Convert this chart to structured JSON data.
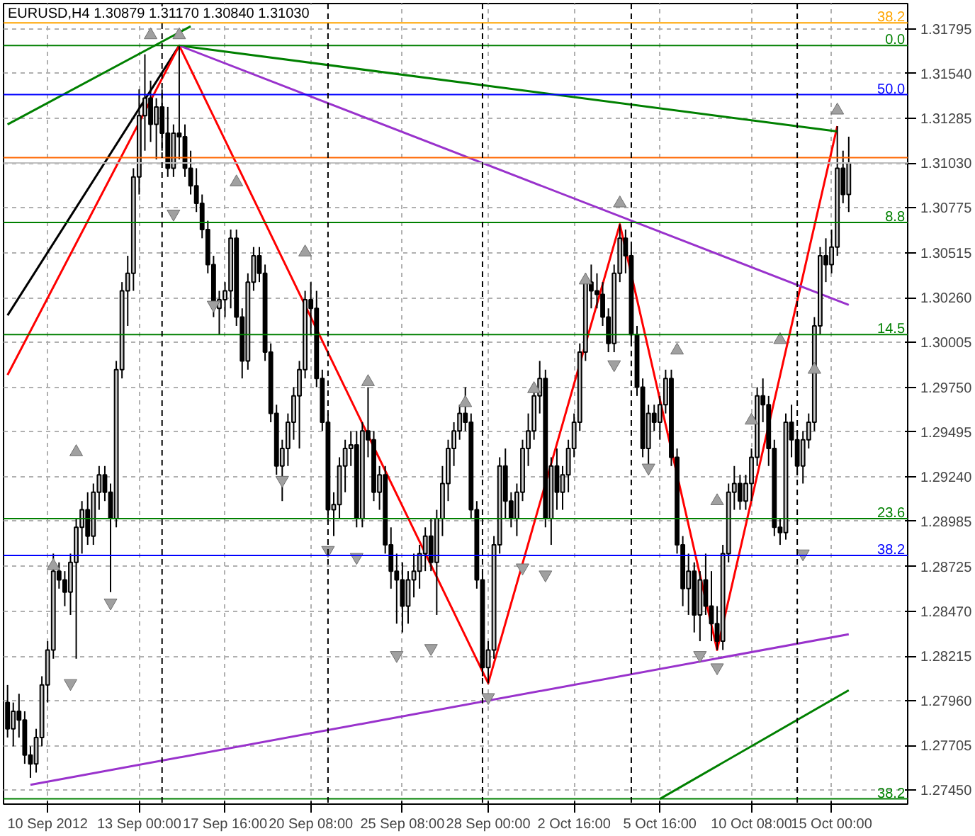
{
  "chart_data": {
    "type": "candlestick",
    "title": "EURUSD,H4  1.30879 1.31170 1.30840 1.31030",
    "categories": [
      null,
      null,
      null,
      null,
      null,
      null,
      null,
      "10 Sep 2012",
      null,
      null,
      null,
      null,
      null,
      null,
      null,
      null,
      null,
      null,
      null,
      null,
      null,
      null,
      null,
      "13 Sep 00:00",
      null,
      null,
      null,
      null,
      null,
      null,
      null,
      null,
      null,
      null,
      null,
      null,
      null,
      null,
      "17 Sep 16:00",
      null,
      null,
      null,
      null,
      null,
      null,
      null,
      null,
      null,
      null,
      null,
      null,
      null,
      null,
      "20 Sep 08:00",
      null,
      null,
      null,
      null,
      null,
      null,
      null,
      null,
      null,
      null,
      null,
      null,
      null,
      null,
      null,
      "25 Sep 08:00",
      null,
      null,
      null,
      null,
      null,
      null,
      null,
      null,
      null,
      null,
      null,
      null,
      null,
      null,
      "28 Sep 00:00",
      null,
      null,
      null,
      null,
      null,
      null,
      null,
      null,
      null,
      null,
      null,
      null,
      null,
      null,
      "2 Oct 16:00",
      null,
      null,
      null,
      null,
      null,
      null,
      null,
      null,
      null,
      null,
      null,
      null,
      null,
      null,
      "5 Oct 16:00",
      null,
      null,
      null,
      null,
      null,
      null,
      null,
      null,
      null,
      null,
      null,
      null,
      null,
      null,
      null,
      "10 Oct 08:00",
      null,
      null,
      null,
      null,
      null,
      null,
      null,
      null,
      null,
      null,
      null,
      null,
      null,
      "15 Oct 00:00",
      null,
      null,
      null
    ],
    "ohlc": [
      [
        1.2795,
        1.2805,
        1.2775,
        1.278
      ],
      [
        1.278,
        1.2795,
        1.277,
        1.279
      ],
      [
        1.279,
        1.28,
        1.2775,
        1.2785
      ],
      [
        1.2785,
        1.279,
        1.276,
        1.2765
      ],
      [
        1.2765,
        1.277,
        1.2752,
        1.276
      ],
      [
        1.276,
        1.278,
        1.2755,
        1.2775
      ],
      [
        1.2775,
        1.281,
        1.277,
        1.2805
      ],
      [
        1.2805,
        1.283,
        1.2795,
        1.2825
      ],
      [
        1.2825,
        1.288,
        1.282,
        1.287
      ],
      [
        1.287,
        1.2875,
        1.286,
        1.2865
      ],
      [
        1.2865,
        1.287,
        1.285,
        1.2858
      ],
      [
        1.2858,
        1.288,
        1.2845,
        1.2875
      ],
      [
        1.2875,
        1.29,
        1.282,
        1.2895
      ],
      [
        1.2895,
        1.291,
        1.288,
        1.2905
      ],
      [
        1.2905,
        1.2915,
        1.2885,
        1.289
      ],
      [
        1.289,
        1.292,
        1.2885,
        1.2915
      ],
      [
        1.2915,
        1.293,
        1.2905,
        1.2925
      ],
      [
        1.2925,
        1.293,
        1.291,
        1.2915
      ],
      [
        1.2915,
        1.292,
        1.2858,
        1.29
      ],
      [
        1.29,
        1.299,
        1.2895,
        1.2985
      ],
      [
        1.2985,
        1.3035,
        1.298,
        1.303
      ],
      [
        1.303,
        1.305,
        1.301,
        1.304
      ],
      [
        1.304,
        1.31,
        1.303,
        1.3095
      ],
      [
        1.3095,
        1.3145,
        1.3085,
        1.313
      ],
      [
        1.313,
        1.3165,
        1.311,
        1.314
      ],
      [
        1.314,
        1.315,
        1.3115,
        1.3125
      ],
      [
        1.3125,
        1.314,
        1.3105,
        1.3135
      ],
      [
        1.3135,
        1.3145,
        1.311,
        1.312
      ],
      [
        1.312,
        1.3135,
        1.3095,
        1.31
      ],
      [
        1.31,
        1.3125,
        1.3095,
        1.312
      ],
      [
        1.312,
        1.317,
        1.3105,
        1.3118
      ],
      [
        1.3118,
        1.3125,
        1.3095,
        1.31
      ],
      [
        1.31,
        1.311,
        1.3085,
        1.309
      ],
      [
        1.309,
        1.31,
        1.3075,
        1.308
      ],
      [
        1.308,
        1.3085,
        1.306,
        1.3065
      ],
      [
        1.3065,
        1.307,
        1.304,
        1.3045
      ],
      [
        1.3045,
        1.305,
        1.3015,
        1.302
      ],
      [
        1.302,
        1.303,
        1.3005,
        1.3025
      ],
      [
        1.3025,
        1.3035,
        1.3015,
        1.303
      ],
      [
        1.303,
        1.3065,
        1.302,
        1.306
      ],
      [
        1.306,
        1.3065,
        1.301,
        1.3015
      ],
      [
        1.3015,
        1.302,
        1.298,
        1.299
      ],
      [
        1.299,
        1.304,
        1.2985,
        1.3035
      ],
      [
        1.3035,
        1.3055,
        1.303,
        1.305
      ],
      [
        1.305,
        1.3055,
        1.3035,
        1.304
      ],
      [
        1.304,
        1.3045,
        1.299,
        1.2995
      ],
      [
        1.2995,
        1.3,
        1.2955,
        1.296
      ],
      [
        1.296,
        1.2965,
        1.2925,
        1.293
      ],
      [
        1.293,
        1.2945,
        1.291,
        1.294
      ],
      [
        1.294,
        1.296,
        1.293,
        1.2955
      ],
      [
        1.2955,
        1.2975,
        1.2945,
        1.297
      ],
      [
        1.297,
        1.299,
        1.294,
        1.2985
      ],
      [
        1.2985,
        1.303,
        1.298,
        1.3025
      ],
      [
        1.3025,
        1.3035,
        1.3005,
        1.302
      ],
      [
        1.302,
        1.303,
        1.2975,
        1.298
      ],
      [
        1.298,
        1.2985,
        1.295,
        1.2955
      ],
      [
        1.2955,
        1.296,
        1.29,
        1.2905
      ],
      [
        1.2905,
        1.2915,
        1.289,
        1.2908
      ],
      [
        1.2908,
        1.2935,
        1.29,
        1.293
      ],
      [
        1.293,
        1.2945,
        1.2915,
        1.294
      ],
      [
        1.294,
        1.295,
        1.293,
        1.2942
      ],
      [
        1.2942,
        1.295,
        1.2895,
        1.29
      ],
      [
        1.29,
        1.2955,
        1.2895,
        1.295
      ],
      [
        1.295,
        1.2975,
        1.2935,
        1.2945
      ],
      [
        1.2945,
        1.295,
        1.291,
        1.2915
      ],
      [
        1.2915,
        1.293,
        1.2905,
        1.2925
      ],
      [
        1.2925,
        1.293,
        1.288,
        1.2885
      ],
      [
        1.2885,
        1.2895,
        1.286,
        1.287
      ],
      [
        1.287,
        1.288,
        1.284,
        1.2865
      ],
      [
        1.2865,
        1.2875,
        1.2835,
        1.285
      ],
      [
        1.285,
        1.287,
        1.284,
        1.2865
      ],
      [
        1.2865,
        1.288,
        1.2855,
        1.287
      ],
      [
        1.287,
        1.2885,
        1.286,
        1.288
      ],
      [
        1.288,
        1.2895,
        1.287,
        1.289
      ],
      [
        1.289,
        1.29,
        1.287,
        1.2875
      ],
      [
        1.2875,
        1.2905,
        1.2845,
        1.29
      ],
      [
        1.29,
        1.293,
        1.289,
        1.292
      ],
      [
        1.292,
        1.2945,
        1.291,
        1.294
      ],
      [
        1.294,
        1.2955,
        1.293,
        1.295
      ],
      [
        1.295,
        1.2965,
        1.2945,
        1.296
      ],
      [
        1.296,
        1.2975,
        1.295,
        1.2955
      ],
      [
        1.2955,
        1.296,
        1.29,
        1.2905
      ],
      [
        1.2905,
        1.291,
        1.286,
        1.2865
      ],
      [
        1.2865,
        1.287,
        1.281,
        1.2815
      ],
      [
        1.2815,
        1.283,
        1.2806,
        1.2825
      ],
      [
        1.2825,
        1.289,
        1.282,
        1.2885
      ],
      [
        1.2885,
        1.2935,
        1.288,
        1.293
      ],
      [
        1.293,
        1.294,
        1.29,
        1.291
      ],
      [
        1.291,
        1.2915,
        1.2895,
        1.29
      ],
      [
        1.29,
        1.292,
        1.289,
        1.2915
      ],
      [
        1.2915,
        1.2945,
        1.291,
        1.294
      ],
      [
        1.294,
        1.296,
        1.293,
        1.295
      ],
      [
        1.295,
        1.2975,
        1.2945,
        1.297
      ],
      [
        1.297,
        1.299,
        1.296,
        1.298
      ],
      [
        1.298,
        1.2985,
        1.2895,
        1.29
      ],
      [
        1.29,
        1.2935,
        1.2885,
        1.293
      ],
      [
        1.293,
        1.294,
        1.2905,
        1.2915
      ],
      [
        1.2915,
        1.293,
        1.2905,
        1.2925
      ],
      [
        1.2925,
        1.2945,
        1.2915,
        1.294
      ],
      [
        1.294,
        1.296,
        1.2935,
        1.2955
      ],
      [
        1.2955,
        1.3,
        1.295,
        1.2995
      ],
      [
        1.2995,
        1.304,
        1.299,
        1.3035
      ],
      [
        1.3035,
        1.3045,
        1.302,
        1.303
      ],
      [
        1.303,
        1.304,
        1.302,
        1.3028
      ],
      [
        1.3028,
        1.3035,
        1.301,
        1.3015
      ],
      [
        1.3015,
        1.302,
        1.2995,
        1.3
      ],
      [
        1.3,
        1.3045,
        1.2995,
        1.304
      ],
      [
        1.304,
        1.3068,
        1.3035,
        1.306
      ],
      [
        1.306,
        1.3065,
        1.304,
        1.305
      ],
      [
        1.305,
        1.3055,
        1.3,
        1.3005
      ],
      [
        1.3005,
        1.301,
        1.297,
        1.2975
      ],
      [
        1.2975,
        1.298,
        1.2935,
        1.294
      ],
      [
        1.294,
        1.2965,
        1.2925,
        1.296
      ],
      [
        1.296,
        1.2965,
        1.295,
        1.2955
      ],
      [
        1.2955,
        1.297,
        1.2945,
        1.2965
      ],
      [
        1.2965,
        1.2985,
        1.296,
        1.298
      ],
      [
        1.298,
        1.2985,
        1.293,
        1.2935
      ],
      [
        1.2935,
        1.294,
        1.288,
        1.2885
      ],
      [
        1.2885,
        1.289,
        1.285,
        1.286
      ],
      [
        1.286,
        1.288,
        1.2845,
        1.287
      ],
      [
        1.287,
        1.2875,
        1.2835,
        1.2845
      ],
      [
        1.2845,
        1.287,
        1.283,
        1.2865
      ],
      [
        1.2865,
        1.288,
        1.2845,
        1.285
      ],
      [
        1.285,
        1.287,
        1.283,
        1.284
      ],
      [
        1.284,
        1.285,
        1.2825,
        1.283
      ],
      [
        1.283,
        1.2885,
        1.2825,
        1.288
      ],
      [
        1.288,
        1.292,
        1.2875,
        1.2915
      ],
      [
        1.2915,
        1.293,
        1.2905,
        1.292
      ],
      [
        1.292,
        1.2925,
        1.2905,
        1.291
      ],
      [
        1.291,
        1.2925,
        1.2905,
        1.292
      ],
      [
        1.292,
        1.294,
        1.291,
        1.2935
      ],
      [
        1.2935,
        1.2975,
        1.293,
        1.297
      ],
      [
        1.297,
        1.298,
        1.2955,
        1.2965
      ],
      [
        1.2965,
        1.297,
        1.293,
        1.294
      ],
      [
        1.294,
        1.2945,
        1.289,
        1.2895
      ],
      [
        1.2895,
        1.29,
        1.2885,
        1.2892
      ],
      [
        1.2892,
        1.296,
        1.2888,
        1.2955
      ],
      [
        1.2955,
        1.2965,
        1.2935,
        1.2945
      ],
      [
        1.2945,
        1.295,
        1.2925,
        1.293
      ],
      [
        1.293,
        1.295,
        1.292,
        1.2945
      ],
      [
        1.2945,
        1.296,
        1.294,
        1.2955
      ],
      [
        1.2955,
        1.3015,
        1.295,
        1.301
      ],
      [
        1.301,
        1.3055,
        1.3005,
        1.305
      ],
      [
        1.305,
        1.306,
        1.3035,
        1.3045
      ],
      [
        1.3045,
        1.3065,
        1.304,
        1.3055
      ],
      [
        1.3055,
        1.3124,
        1.305,
        1.31
      ],
      [
        1.31,
        1.311,
        1.308,
        1.3085
      ],
      [
        1.3085,
        1.3118,
        1.3075,
        1.3103
      ]
    ],
    "color": "#000000",
    "series": [
      {
        "type": "line",
        "color": "#000000",
        "values": [
          1.3016,
          null,
          null,
          null,
          null,
          null,
          null,
          null,
          null,
          null,
          null,
          null,
          null,
          null,
          null,
          null,
          null,
          null,
          null,
          null,
          null,
          null,
          null,
          null,
          null,
          null,
          null,
          null,
          null,
          null,
          1.317,
          null,
          null,
          null,
          null,
          null,
          null,
          null,
          null,
          null,
          null,
          null,
          null,
          null,
          null,
          null,
          null,
          null,
          null,
          null,
          null,
          null,
          null,
          null,
          null,
          null,
          null,
          null,
          null,
          null,
          null,
          null,
          null,
          null,
          null,
          null,
          null,
          null,
          null,
          null,
          null,
          null,
          null,
          null,
          null,
          null,
          null,
          null,
          null,
          null,
          null,
          null,
          null,
          null,
          null,
          null,
          null,
          null,
          null,
          null,
          null,
          null,
          null,
          null,
          null,
          null,
          null,
          null,
          null,
          null,
          null,
          null,
          null,
          null,
          null,
          null,
          null,
          null,
          null,
          null,
          null,
          null,
          null,
          null,
          null,
          null,
          null,
          null,
          null,
          null,
          null,
          null,
          null,
          null,
          null,
          null,
          null,
          null,
          null,
          null,
          null,
          null,
          null,
          null,
          null,
          null,
          null,
          null,
          null,
          null,
          null,
          null,
          null,
          null,
          null,
          null,
          null,
          null
        ]
      },
      {
        "type": "line",
        "color": "#ff0000",
        "values": [
          1.2982,
          null,
          null,
          null,
          null,
          null,
          null,
          null,
          null,
          null,
          null,
          null,
          null,
          null,
          null,
          null,
          null,
          null,
          null,
          null,
          null,
          null,
          null,
          null,
          null,
          null,
          null,
          null,
          null,
          null,
          1.317,
          null,
          null,
          null,
          null,
          null,
          null,
          null,
          null,
          null,
          null,
          null,
          null,
          null,
          null,
          null,
          null,
          null,
          null,
          null,
          null,
          null,
          null,
          null,
          null,
          null,
          null,
          null,
          null,
          null,
          null,
          null,
          null,
          null,
          null,
          null,
          null,
          null,
          null,
          null,
          null,
          null,
          null,
          null,
          null,
          null,
          null,
          null,
          null,
          null,
          null,
          null,
          null,
          null,
          1.2806,
          null,
          null,
          null,
          null,
          null,
          null,
          null,
          null,
          null,
          null,
          null,
          null,
          null,
          null,
          null,
          null,
          null,
          null,
          null,
          null,
          null,
          null,
          1.3068,
          null,
          null,
          null,
          null,
          null,
          null,
          null,
          null,
          null,
          null,
          null,
          null,
          null,
          null,
          null,
          null,
          1.2825,
          null,
          null,
          null,
          null,
          null,
          null,
          null,
          null,
          null,
          null,
          null,
          null,
          null,
          null,
          null,
          null,
          null,
          null,
          null,
          null,
          1.3124,
          null,
          null
        ]
      },
      {
        "type": "line",
        "color": "#008000",
        "values": [
          null,
          null,
          null,
          null,
          null,
          null,
          null,
          null,
          null,
          null,
          null,
          null,
          null,
          null,
          null,
          null,
          null,
          null,
          null,
          null,
          null,
          null,
          null,
          null,
          null,
          null,
          null,
          null,
          null,
          null,
          1.317,
          null,
          null,
          null,
          null,
          null,
          null,
          null,
          null,
          null,
          null,
          null,
          null,
          null,
          null,
          null,
          null,
          null,
          null,
          null,
          null,
          null,
          null,
          null,
          null,
          null,
          null,
          null,
          null,
          null,
          null,
          null,
          null,
          null,
          null,
          null,
          null,
          null,
          null,
          null,
          null,
          null,
          null,
          null,
          null,
          null,
          null,
          null,
          null,
          null,
          null,
          null,
          null,
          null,
          null,
          null,
          null,
          null,
          null,
          null,
          null,
          null,
          null,
          null,
          null,
          null,
          null,
          null,
          null,
          null,
          null,
          null,
          null,
          null,
          null,
          null,
          null,
          null,
          null,
          null,
          null,
          null,
          null,
          null,
          null,
          null,
          null,
          null,
          null,
          null,
          null,
          null,
          null,
          null,
          null,
          null,
          null,
          null,
          null,
          null,
          null,
          null,
          null,
          null,
          null,
          null,
          null,
          null,
          null,
          null,
          null,
          null,
          null,
          null,
          null,
          1.3121,
          null,
          null
        ]
      },
      {
        "type": "line",
        "color": "#9932cc",
        "values": [
          null,
          null,
          null,
          null,
          null,
          null,
          null,
          null,
          null,
          null,
          null,
          null,
          null,
          null,
          null,
          null,
          null,
          null,
          null,
          null,
          null,
          null,
          null,
          null,
          null,
          null,
          null,
          null,
          null,
          null,
          1.317,
          null,
          null,
          null,
          null,
          null,
          null,
          null,
          null,
          null,
          null,
          null,
          null,
          null,
          null,
          null,
          null,
          null,
          null,
          null,
          null,
          null,
          null,
          null,
          null,
          null,
          null,
          null,
          null,
          null,
          null,
          null,
          null,
          null,
          null,
          null,
          null,
          null,
          null,
          null,
          null,
          null,
          null,
          null,
          null,
          null,
          null,
          null,
          null,
          null,
          null,
          null,
          null,
          null,
          null,
          null,
          null,
          null,
          null,
          null,
          null,
          null,
          null,
          null,
          null,
          null,
          null,
          null,
          null,
          null,
          null,
          null,
          null,
          null,
          null,
          null,
          null,
          null,
          null,
          null,
          null,
          null,
          null,
          null,
          null,
          null,
          null,
          null,
          null,
          null,
          null,
          null,
          null,
          null,
          null,
          null,
          null,
          null,
          null,
          null,
          null,
          null,
          null,
          null,
          null,
          null,
          null,
          null,
          null,
          null,
          null,
          null,
          null,
          null,
          null,
          null,
          null,
          1.3022
        ]
      },
      {
        "type": "line",
        "color": "#9932cc",
        "values": [
          null,
          null,
          null,
          null,
          1.2748,
          null,
          null,
          null,
          null,
          null,
          null,
          null,
          null,
          null,
          null,
          null,
          null,
          null,
          null,
          null,
          null,
          null,
          null,
          null,
          null,
          null,
          null,
          null,
          null,
          null,
          null,
          null,
          null,
          null,
          null,
          null,
          null,
          null,
          null,
          null,
          null,
          null,
          null,
          null,
          null,
          null,
          null,
          null,
          null,
          null,
          null,
          null,
          null,
          null,
          null,
          null,
          null,
          null,
          null,
          null,
          null,
          null,
          null,
          null,
          null,
          null,
          null,
          null,
          null,
          null,
          null,
          null,
          null,
          null,
          null,
          null,
          null,
          null,
          null,
          null,
          null,
          null,
          null,
          null,
          null,
          null,
          null,
          null,
          null,
          null,
          null,
          null,
          null,
          null,
          null,
          null,
          null,
          null,
          null,
          null,
          null,
          null,
          null,
          null,
          null,
          null,
          null,
          null,
          null,
          null,
          null,
          null,
          null,
          null,
          null,
          null,
          null,
          null,
          null,
          null,
          null,
          null,
          null,
          null,
          null,
          null,
          null,
          null,
          null,
          null,
          null,
          null,
          null,
          null,
          null,
          null,
          null,
          null,
          null,
          null,
          null,
          null,
          null,
          null,
          null,
          null,
          null,
          1.2834
        ]
      },
      {
        "type": "line",
        "color": "#008000",
        "values": [
          1.3125,
          null,
          null,
          null,
          null,
          null,
          null,
          null,
          null,
          null,
          null,
          null,
          null,
          null,
          null,
          null,
          null,
          null,
          null,
          null,
          null,
          null,
          null,
          null,
          null,
          null,
          null,
          null,
          null,
          null,
          null,
          null,
          1.3181,
          null,
          null,
          null,
          null,
          null,
          null,
          null,
          null,
          null,
          null,
          null,
          null,
          null,
          null,
          null,
          null,
          null,
          null,
          null,
          null,
          null,
          null,
          null,
          null,
          null,
          null,
          null,
          null,
          null,
          null,
          null,
          null,
          null,
          null,
          null,
          null,
          null,
          null,
          null,
          null,
          null,
          null,
          null,
          null,
          null,
          null,
          null,
          null,
          null,
          null,
          null,
          null,
          null,
          null,
          null,
          null,
          null,
          null,
          null,
          null,
          null,
          null,
          null,
          null,
          null,
          null,
          null,
          null,
          null,
          null,
          null,
          null,
          null,
          null,
          null,
          null,
          null,
          null,
          null,
          null,
          null,
          null,
          null,
          null,
          null,
          null,
          null,
          null,
          null,
          null,
          null,
          null,
          null,
          null,
          null,
          null,
          null,
          null,
          null,
          null,
          null,
          null,
          null,
          null,
          null,
          null,
          null,
          null,
          null,
          null,
          null,
          null,
          null,
          null,
          null
        ]
      },
      {
        "type": "line",
        "color": "#008000",
        "values": [
          null,
          null,
          null,
          null,
          null,
          null,
          null,
          null,
          null,
          null,
          null,
          null,
          null,
          null,
          null,
          null,
          null,
          null,
          null,
          null,
          null,
          null,
          null,
          null,
          null,
          null,
          null,
          null,
          null,
          null,
          null,
          null,
          null,
          null,
          null,
          null,
          null,
          null,
          null,
          null,
          null,
          null,
          null,
          null,
          null,
          null,
          null,
          null,
          null,
          null,
          null,
          null,
          null,
          null,
          null,
          null,
          null,
          null,
          null,
          null,
          null,
          null,
          null,
          null,
          null,
          null,
          null,
          null,
          null,
          null,
          null,
          null,
          null,
          null,
          null,
          null,
          null,
          null,
          null,
          null,
          null,
          null,
          null,
          null,
          null,
          null,
          null,
          null,
          null,
          null,
          null,
          null,
          null,
          null,
          null,
          null,
          null,
          null,
          null,
          null,
          null,
          null,
          null,
          null,
          null,
          null,
          null,
          null,
          null,
          null,
          null,
          null,
          null,
          null,
          1.274,
          null,
          null,
          null,
          null,
          null,
          null,
          null,
          null,
          null,
          null,
          null,
          null,
          null,
          null,
          null,
          null,
          null,
          null,
          null,
          null,
          null,
          null,
          null,
          null,
          null,
          null,
          null,
          null,
          null,
          null,
          null,
          null,
          1.2802
        ]
      },
      {
        "type": "scatter",
        "marker": "triangle",
        "color": "#a0a0a0",
        "values": [
          null,
          null,
          null,
          null,
          null,
          null,
          null,
          null,
          1.2873,
          null,
          null,
          null,
          1.2938,
          null,
          null,
          null,
          null,
          null,
          null,
          null,
          null,
          null,
          null,
          null,
          null,
          1.3176,
          null,
          null,
          null,
          null,
          1.3176,
          null,
          null,
          null,
          null,
          null,
          null,
          null,
          null,
          null,
          1.3092,
          null,
          null,
          null,
          null,
          null,
          null,
          null,
          null,
          null,
          null,
          null,
          1.3052,
          null,
          null,
          null,
          null,
          null,
          null,
          null,
          null,
          null,
          null,
          1.2978,
          null,
          null,
          null,
          null,
          null,
          null,
          null,
          null,
          null,
          null,
          null,
          null,
          null,
          null,
          null,
          null,
          1.2966,
          null,
          null,
          null,
          null,
          null,
          null,
          null,
          null,
          null,
          null,
          null,
          1.2974,
          null,
          null,
          null,
          null,
          null,
          null,
          null,
          null,
          1.3036,
          null,
          null,
          null,
          null,
          null,
          1.308,
          null,
          null,
          null,
          null,
          null,
          null,
          null,
          null,
          null,
          1.2996,
          null,
          null,
          null,
          null,
          null,
          null,
          1.291,
          null,
          null,
          null,
          null,
          null,
          1.2956,
          null,
          null,
          null,
          null,
          1.3002,
          null,
          null,
          null,
          null,
          null,
          1.2985,
          null,
          null,
          null,
          1.3133,
          null,
          null
        ]
      },
      {
        "type": "scatter",
        "marker": "triangle",
        "color": "#a0a0a0",
        "values": [
          null,
          null,
          null,
          null,
          null,
          null,
          null,
          null,
          null,
          null,
          null,
          1.2806,
          null,
          null,
          null,
          null,
          null,
          null,
          1.2852,
          null,
          null,
          null,
          null,
          null,
          null,
          null,
          null,
          null,
          null,
          1.3074,
          null,
          null,
          null,
          null,
          null,
          null,
          1.3022,
          null,
          null,
          null,
          null,
          null,
          null,
          null,
          null,
          null,
          null,
          null,
          1.2922,
          null,
          null,
          null,
          null,
          null,
          null,
          null,
          1.2882,
          null,
          null,
          null,
          null,
          1.2878,
          null,
          null,
          null,
          null,
          null,
          null,
          1.2822,
          null,
          null,
          null,
          null,
          null,
          1.2826,
          null,
          null,
          null,
          null,
          null,
          null,
          null,
          null,
          null,
          1.2798,
          null,
          null,
          null,
          null,
          null,
          1.2872,
          null,
          null,
          null,
          1.2868,
          null,
          null,
          null,
          null,
          null,
          null,
          null,
          null,
          null,
          null,
          null,
          1.2988,
          null,
          null,
          null,
          null,
          null,
          1.2929,
          null,
          null,
          null,
          null,
          null,
          null,
          null,
          null,
          1.2822,
          null,
          null,
          1.2815,
          null,
          null,
          null,
          null,
          null,
          null,
          null,
          null,
          null,
          null,
          null,
          null,
          null,
          null,
          1.288,
          null,
          null,
          null,
          null,
          null,
          null,
          null,
          null
        ]
      }
    ],
    "ref_lines": [
      {
        "axis": "y",
        "value": 1.3183,
        "color": "#ffa500"
      },
      {
        "axis": "y",
        "value": 1.317,
        "color": "#008000"
      },
      {
        "axis": "y",
        "value": 1.3142,
        "color": "#0000ff"
      },
      {
        "axis": "y",
        "value": 1.3106,
        "color": "#ff6600"
      },
      {
        "axis": "y",
        "value": 1.3103,
        "color": "#c0c0c0"
      },
      {
        "axis": "y",
        "value": 1.3069,
        "color": "#008000"
      },
      {
        "axis": "y",
        "value": 1.3005,
        "color": "#008000"
      },
      {
        "axis": "y",
        "value": 1.29,
        "color": "#008000"
      },
      {
        "axis": "y",
        "value": 1.2879,
        "color": "#0000ff"
      },
      {
        "axis": "y",
        "value": 1.274,
        "color": "#008000"
      }
    ],
    "annotations": [
      {
        "text": "38.2",
        "y": 1.3183
      },
      {
        "text": "0.0",
        "y": 1.317
      },
      {
        "text": "50.0",
        "y": 1.3142
      },
      {
        "text": "8.8",
        "y": 1.3069
      },
      {
        "text": "14.5",
        "y": 1.3005
      },
      {
        "text": "23.6",
        "y": 1.29
      },
      {
        "text": "38.2",
        "y": 1.2879
      },
      {
        "text": "38.2",
        "y": 1.274
      }
    ],
    "ylim": [
      1.2737,
      1.3194
    ],
    "yticks": [
      1.31795,
      {
        "value": 1.3154,
        "label": "1.31540"
      },
      1.31285,
      {
        "value": 1.3103,
        "label": "1.31030"
      },
      1.30775,
      1.30515,
      {
        "value": 1.3026,
        "label": "1.30260"
      },
      1.30005,
      {
        "value": 1.2975,
        "label": "1.29750"
      },
      1.29495,
      {
        "value": 1.2924,
        "label": "1.29240"
      },
      1.28985,
      1.28725,
      {
        "value": 1.2847,
        "label": "1.28470"
      },
      1.28215,
      {
        "value": 1.2796,
        "label": "1.27960"
      },
      1.27705,
      {
        "value": 1.2745,
        "label": "1.27450"
      }
    ],
    "grid": true
  }
}
